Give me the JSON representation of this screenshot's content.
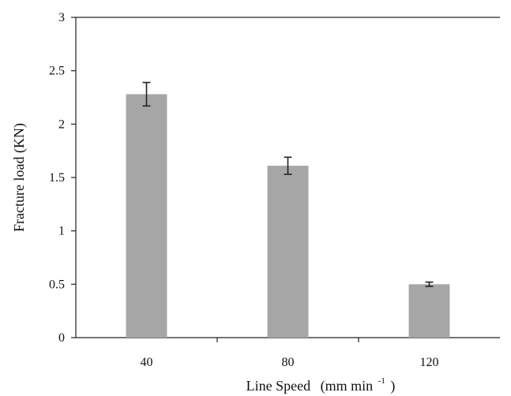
{
  "chart_data": {
    "type": "bar",
    "title": "",
    "categories": [
      "40",
      "80",
      "120"
    ],
    "values": [
      2.28,
      1.61,
      0.5
    ],
    "errors": [
      0.11,
      0.08,
      0.02
    ],
    "bar_color": "#a6a6a6",
    "ylim": [
      0,
      3
    ],
    "yticks": [
      "0",
      "0.5",
      "1",
      "1.5",
      "2",
      "2.5",
      "3"
    ],
    "ylabel": "Fracture load (KN)",
    "xlabel": "Line Speed",
    "xlabel_unit": "(mm min",
    "xlabel_unit_sup": "-1",
    "xlabel_unit_close": ")",
    "grid": false,
    "legend": "none"
  }
}
